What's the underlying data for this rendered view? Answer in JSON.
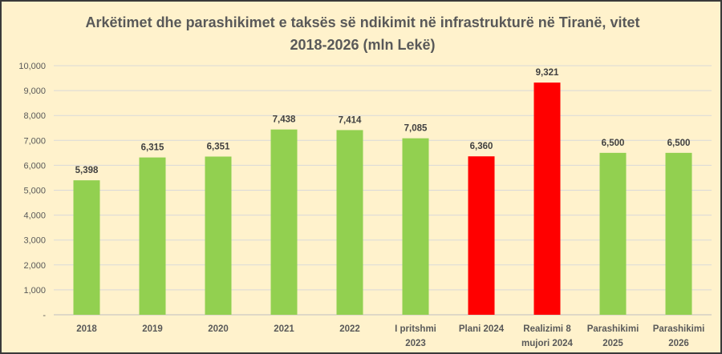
{
  "chart_data": {
    "type": "bar",
    "title_line1": "Arkëtimet dhe parashikimet e taksës së ndikimit në infrastrukturë në Tiranë, vitet",
    "title_line2": "2018-2026 (mln Lekë)",
    "categories": [
      [
        "2018"
      ],
      [
        "2019"
      ],
      [
        "2020"
      ],
      [
        "2021"
      ],
      [
        "2022"
      ],
      [
        "I pritshmi",
        "2023"
      ],
      [
        "Plani 2024"
      ],
      [
        "Realizimi 8",
        "mujori 2024"
      ],
      [
        "Parashikimi",
        "2025"
      ],
      [
        "Parashikimi",
        "2026"
      ]
    ],
    "values": [
      5398,
      6315,
      6351,
      7438,
      7414,
      7085,
      6360,
      9321,
      6500,
      6500
    ],
    "value_labels": [
      "5,398",
      "6,315",
      "6,351",
      "7,438",
      "7,414",
      "7,085",
      "6,360",
      "9,321",
      "6,500",
      "6,500"
    ],
    "colors": [
      "#92D050",
      "#92D050",
      "#92D050",
      "#92D050",
      "#92D050",
      "#92D050",
      "#FF0000",
      "#FF0000",
      "#92D050",
      "#92D050"
    ],
    "ylim": [
      0,
      10000
    ],
    "yticks": [
      0,
      1000,
      2000,
      3000,
      4000,
      5000,
      6000,
      7000,
      8000,
      9000,
      10000
    ],
    "ytick_labels": [
      "-",
      "1,000",
      "2,000",
      "3,000",
      "4,000",
      "5,000",
      "6,000",
      "7,000",
      "8,000",
      "9,000",
      "10,000"
    ],
    "grid": true,
    "xlabel": "",
    "ylabel": ""
  }
}
